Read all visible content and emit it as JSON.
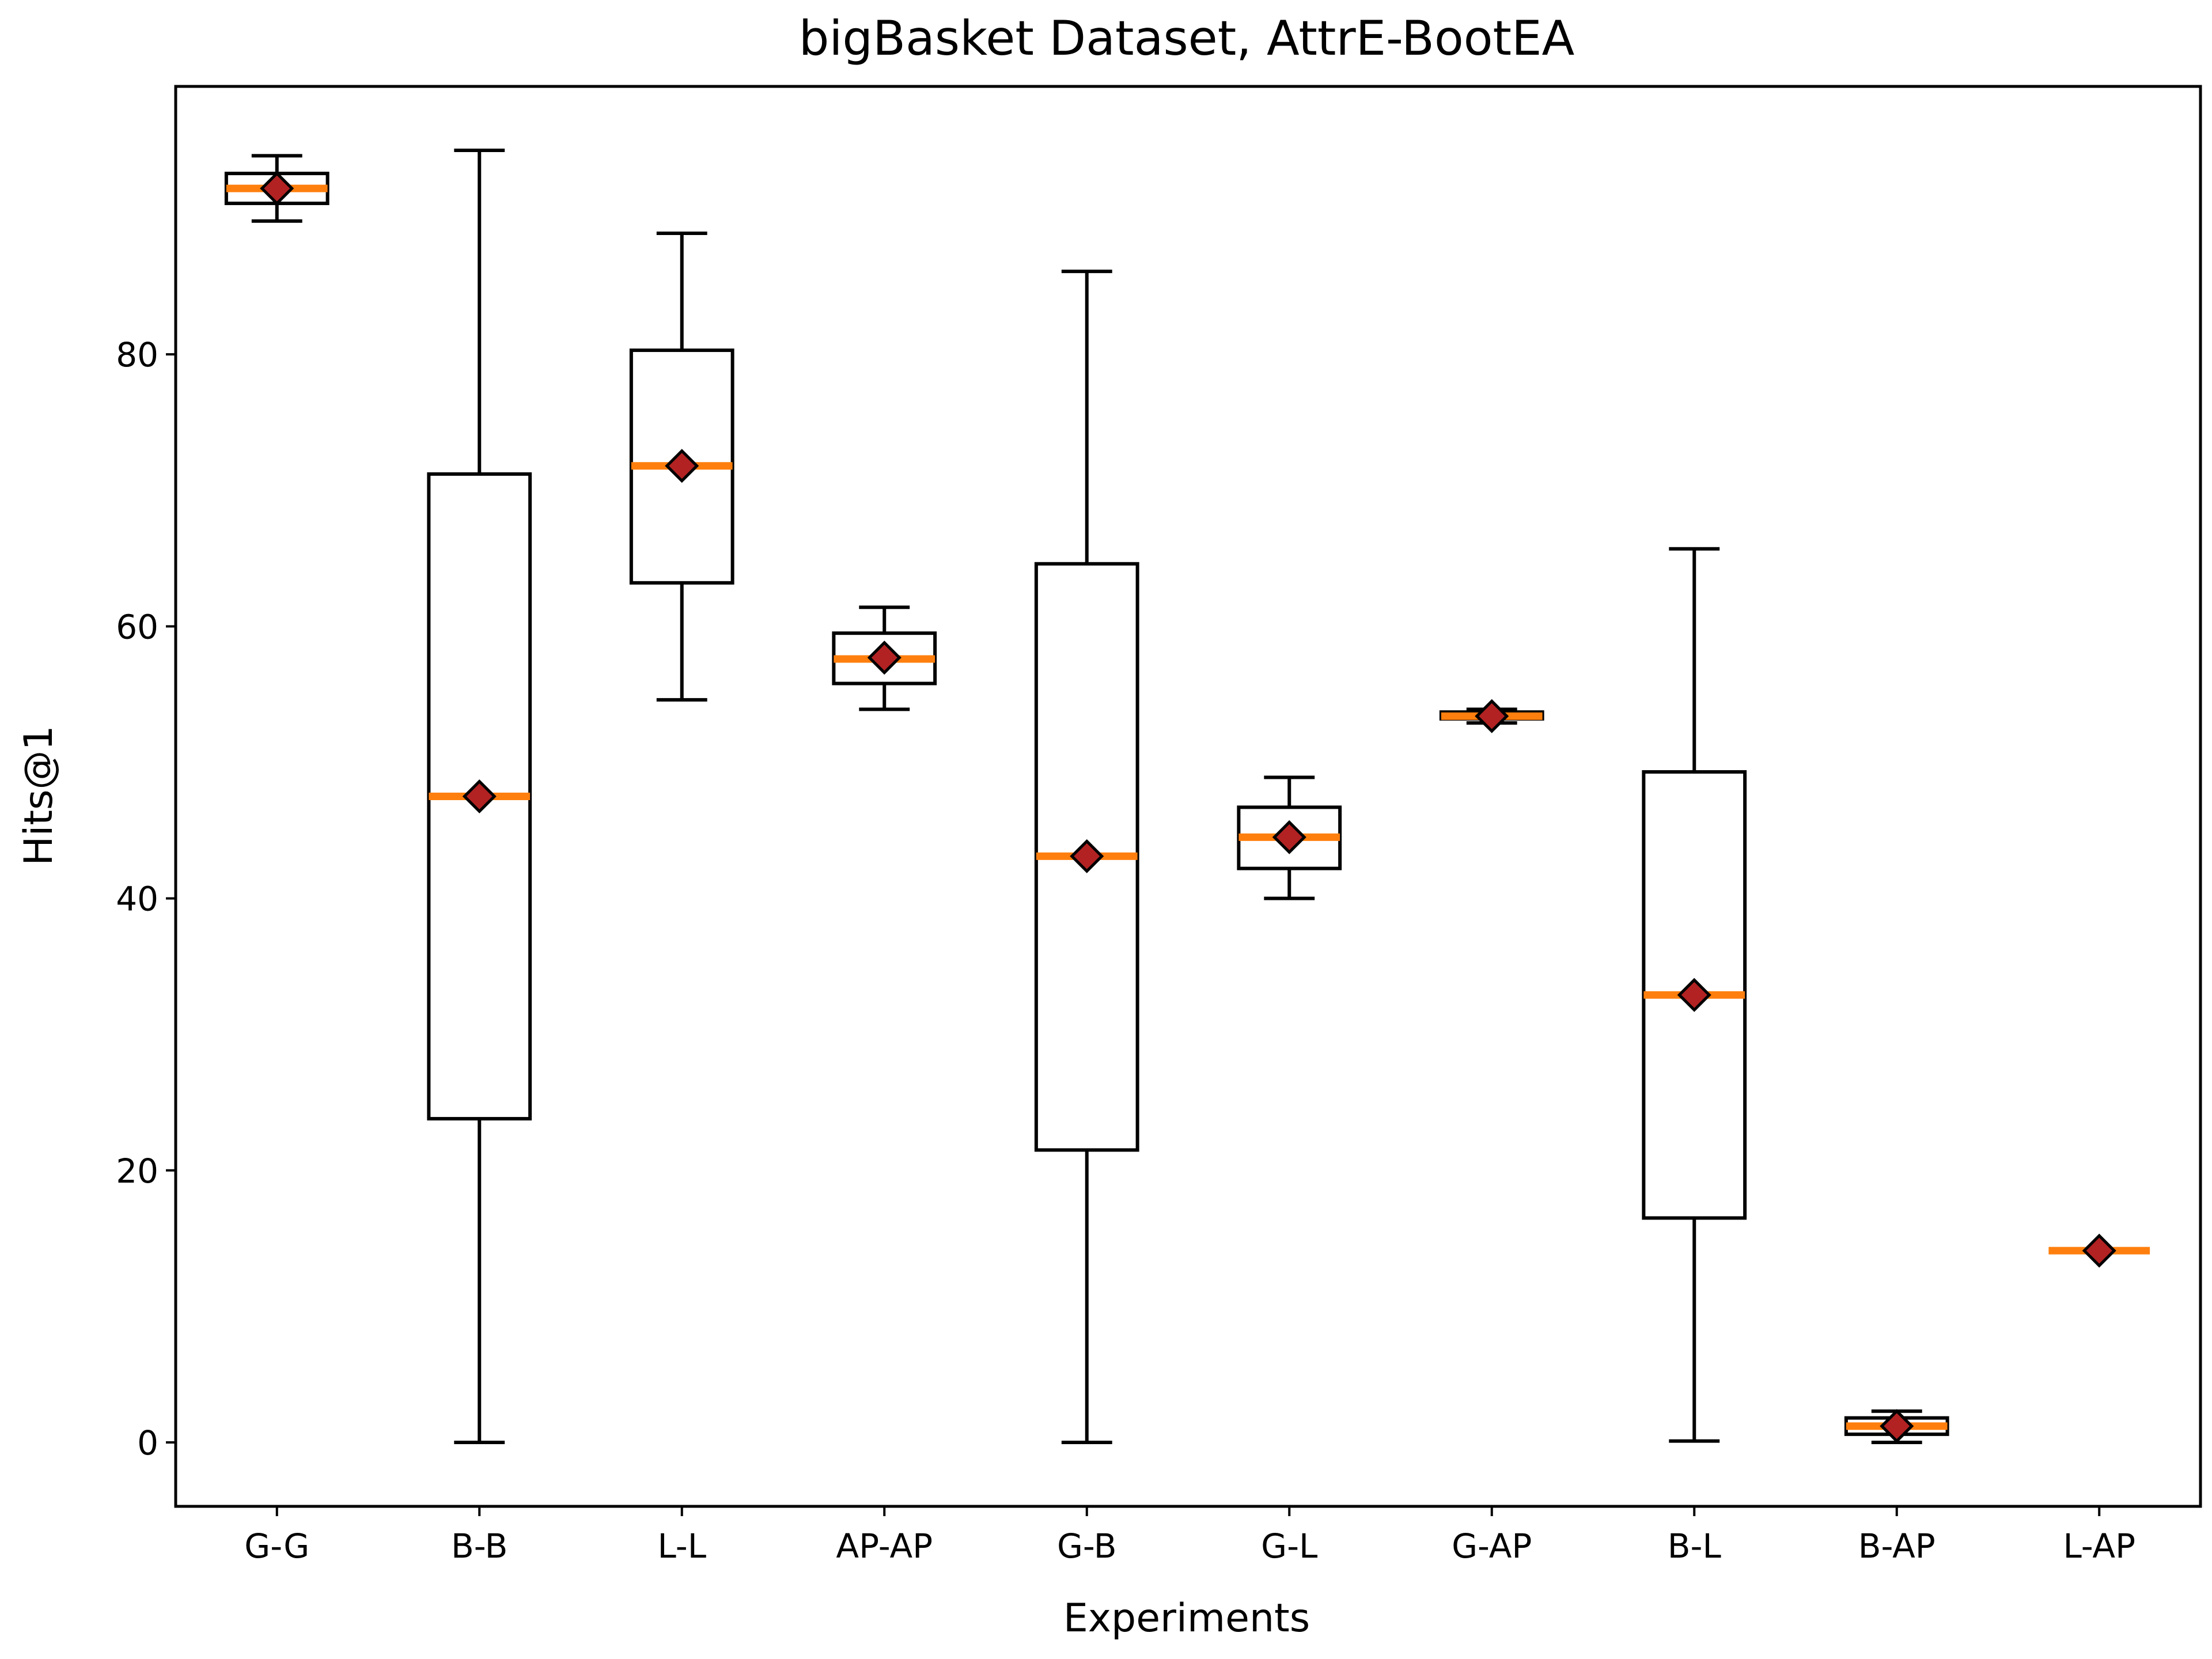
{
  "chart_data": {
    "type": "box",
    "title": "bigBasket Dataset, AttrE-BootEA",
    "xlabel": "Experiments",
    "ylabel": "Hits@1",
    "ylim": [
      -4.7,
      99.7
    ],
    "yticks": [
      0,
      20,
      40,
      60,
      80
    ],
    "grid": false,
    "categories": [
      "G-G",
      "B-B",
      "L-L",
      "AP-AP",
      "G-B",
      "G-L",
      "G-AP",
      "B-L",
      "B-AP",
      "L-AP"
    ],
    "boxes": [
      {
        "label": "G-G",
        "whisker_low": 89.8,
        "q1": 91.1,
        "median": 92.2,
        "q3": 93.3,
        "whisker_high": 94.6,
        "mean": 92.2
      },
      {
        "label": "B-B",
        "whisker_low": 0.0,
        "q1": 23.8,
        "median": 47.5,
        "q3": 71.2,
        "whisker_high": 95.0,
        "mean": 47.5
      },
      {
        "label": "L-L",
        "whisker_low": 54.6,
        "q1": 63.2,
        "median": 71.8,
        "q3": 80.3,
        "whisker_high": 88.9,
        "mean": 71.8
      },
      {
        "label": "AP-AP",
        "whisker_low": 53.9,
        "q1": 55.8,
        "median": 57.6,
        "q3": 59.5,
        "whisker_high": 61.4,
        "mean": 57.7
      },
      {
        "label": "G-B",
        "whisker_low": 0.0,
        "q1": 21.5,
        "median": 43.1,
        "q3": 64.6,
        "whisker_high": 86.1,
        "mean": 43.1
      },
      {
        "label": "G-L",
        "whisker_low": 40.0,
        "q1": 42.2,
        "median": 44.5,
        "q3": 46.7,
        "whisker_high": 48.9,
        "mean": 44.5
      },
      {
        "label": "G-AP",
        "whisker_low": 52.9,
        "q1": 53.2,
        "median": 53.4,
        "q3": 53.7,
        "whisker_high": 53.9,
        "mean": 53.4
      },
      {
        "label": "B-L",
        "whisker_low": 0.1,
        "q1": 16.5,
        "median": 32.9,
        "q3": 49.3,
        "whisker_high": 65.7,
        "mean": 32.9
      },
      {
        "label": "B-AP",
        "whisker_low": 0.0,
        "q1": 0.6,
        "median": 1.2,
        "q3": 1.8,
        "whisker_high": 2.3,
        "mean": 1.2
      },
      {
        "label": "L-AP",
        "whisker_low": 14.1,
        "q1": 14.1,
        "median": 14.1,
        "q3": 14.1,
        "whisker_high": 14.1,
        "mean": 14.1
      }
    ],
    "colors": {
      "box": "#000000",
      "median": "#ff7f0e",
      "mean_marker_fill": "#b22222",
      "mean_marker_edge": "#000000"
    }
  }
}
